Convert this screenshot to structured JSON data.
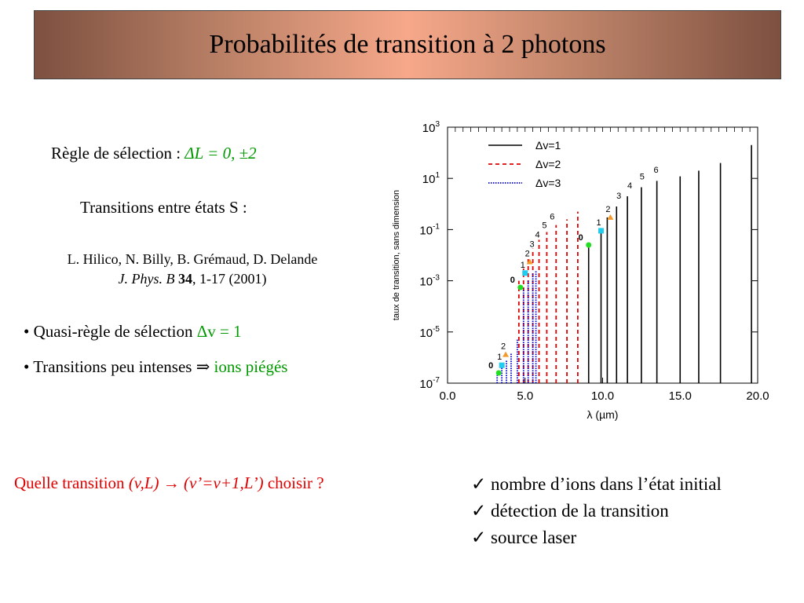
{
  "title": "Probabilités de transition à 2 photons",
  "rule": {
    "prefix": "Règle de sélection : ",
    "formula": "ΔL = 0, ±2"
  },
  "transitions_heading": "Transitions entre états S :",
  "reference": {
    "authors": "L. Hilico, N. Billy, B. Grémaud, D. Delande",
    "journal": "J. Phys. B",
    "volume": "34",
    "pages": ", 1-17 (2001)"
  },
  "bullets": [
    {
      "text": "• Quasi-règle de sélection  ",
      "highlight": "Δv = 1"
    },
    {
      "text": "• Transitions peu intenses ⇒ ",
      "highlight": "ions piégés"
    }
  ],
  "question": {
    "prefix": "Quelle transition  ",
    "formula": "(v,L) → (v’=v+1,L’)",
    "suffix": "  choisir ?"
  },
  "checklist": [
    "✓ nombre d’ions dans l’état initial",
    "✓ détection de la transition",
    "✓ source laser"
  ],
  "colors": {
    "dv1": "#000000",
    "dv2": "#e00000",
    "dv3": "#0000cc",
    "green_text": "#009900",
    "red_text": "#e00000",
    "dot_green": "#22dd22",
    "dot_cyan": "#22ccee",
    "dot_orange": "#f39a2a"
  },
  "chart_data": {
    "type": "bar",
    "scale": "log-y",
    "xlabel": "λ (µm)",
    "ylabel": "taux de transition, sans dimension",
    "xlim": [
      0,
      20
    ],
    "ylim": [
      1e-07,
      1000.0
    ],
    "xticks": [
      "0.0",
      "5.0",
      "10.0",
      "15.0",
      "20.0"
    ],
    "yticks": [
      {
        "base": "10",
        "exp": "3",
        "value": 1000.0
      },
      {
        "base": "10",
        "exp": "1",
        "value": 10.0
      },
      {
        "base": "10",
        "exp": "-1",
        "value": 0.1
      },
      {
        "base": "10",
        "exp": "-3",
        "value": 0.001
      },
      {
        "base": "10",
        "exp": "-5",
        "value": 1e-05
      },
      {
        "base": "10",
        "exp": "-7",
        "value": 1e-07
      }
    ],
    "legend": {
      "placement": "top-right",
      "entries": [
        "Δv=1",
        "Δv=2",
        "Δv=3"
      ]
    },
    "series": [
      {
        "name": "Δv=1",
        "style": "solid",
        "points": [
          [
            9.1,
            0.02
          ],
          [
            9.9,
            0.08
          ],
          [
            10.3,
            0.3
          ],
          [
            10.9,
            0.8
          ],
          [
            11.6,
            2.0
          ],
          [
            12.5,
            4.5
          ],
          [
            13.5,
            8
          ],
          [
            15.0,
            12
          ],
          [
            16.2,
            20
          ],
          [
            17.6,
            40
          ],
          [
            19.6,
            200
          ]
        ]
      },
      {
        "name": "Δv=2",
        "style": "dashed",
        "points": [
          [
            4.6,
            0.001
          ],
          [
            4.9,
            0.003
          ],
          [
            5.2,
            0.008
          ],
          [
            5.5,
            0.018
          ],
          [
            5.9,
            0.04
          ],
          [
            6.4,
            0.08
          ],
          [
            7.0,
            0.15
          ],
          [
            7.7,
            0.25
          ],
          [
            8.4,
            0.5
          ]
        ]
      },
      {
        "name": "Δv=3",
        "style": "dotted",
        "points": [
          [
            3.2,
            2e-07
          ],
          [
            3.5,
            4e-07
          ],
          [
            3.8,
            8e-07
          ],
          [
            4.1,
            1.5e-06
          ],
          [
            4.5,
            5e-06
          ],
          [
            4.9,
            0.0005
          ],
          [
            5.2,
            0.001
          ],
          [
            5.5,
            0.002
          ],
          [
            5.7,
            0.0025
          ]
        ]
      }
    ],
    "annotations": [
      {
        "label": "0",
        "x": 3.3,
        "y": 2.5e-07,
        "marker": "dot_green"
      },
      {
        "label": "1",
        "x": 3.5,
        "y": 5e-07,
        "marker": "dot_cyan"
      },
      {
        "label": "2",
        "x": 3.75,
        "y": 1.3e-06,
        "marker": "dot_orange"
      },
      {
        "label": "0",
        "x": 4.7,
        "y": 0.00055,
        "marker": "dot_green"
      },
      {
        "label": "1",
        "x": 5.0,
        "y": 0.002,
        "marker": "dot_cyan"
      },
      {
        "label": "2",
        "x": 5.3,
        "y": 0.0055,
        "marker": "dot_orange"
      },
      {
        "label": "3",
        "x": 5.6,
        "y": 0.013,
        "marker": "none"
      },
      {
        "label": "4",
        "x": 5.95,
        "y": 0.03,
        "marker": "none"
      },
      {
        "label": "5",
        "x": 6.4,
        "y": 0.07,
        "marker": "none"
      },
      {
        "label": "6",
        "x": 6.9,
        "y": 0.15,
        "marker": "none"
      },
      {
        "label": "0",
        "x": 9.1,
        "y": 0.025,
        "marker": "dot_green"
      },
      {
        "label": "1",
        "x": 9.9,
        "y": 0.09,
        "marker": "dot_cyan"
      },
      {
        "label": "2",
        "x": 10.5,
        "y": 0.3,
        "marker": "dot_orange"
      },
      {
        "label": "3",
        "x": 11.2,
        "y": 1.0,
        "marker": "none"
      },
      {
        "label": "4",
        "x": 11.9,
        "y": 2.5,
        "marker": "none"
      },
      {
        "label": "5",
        "x": 12.7,
        "y": 5.5,
        "marker": "none"
      },
      {
        "label": "6",
        "x": 13.6,
        "y": 10,
        "marker": "none"
      }
    ]
  }
}
